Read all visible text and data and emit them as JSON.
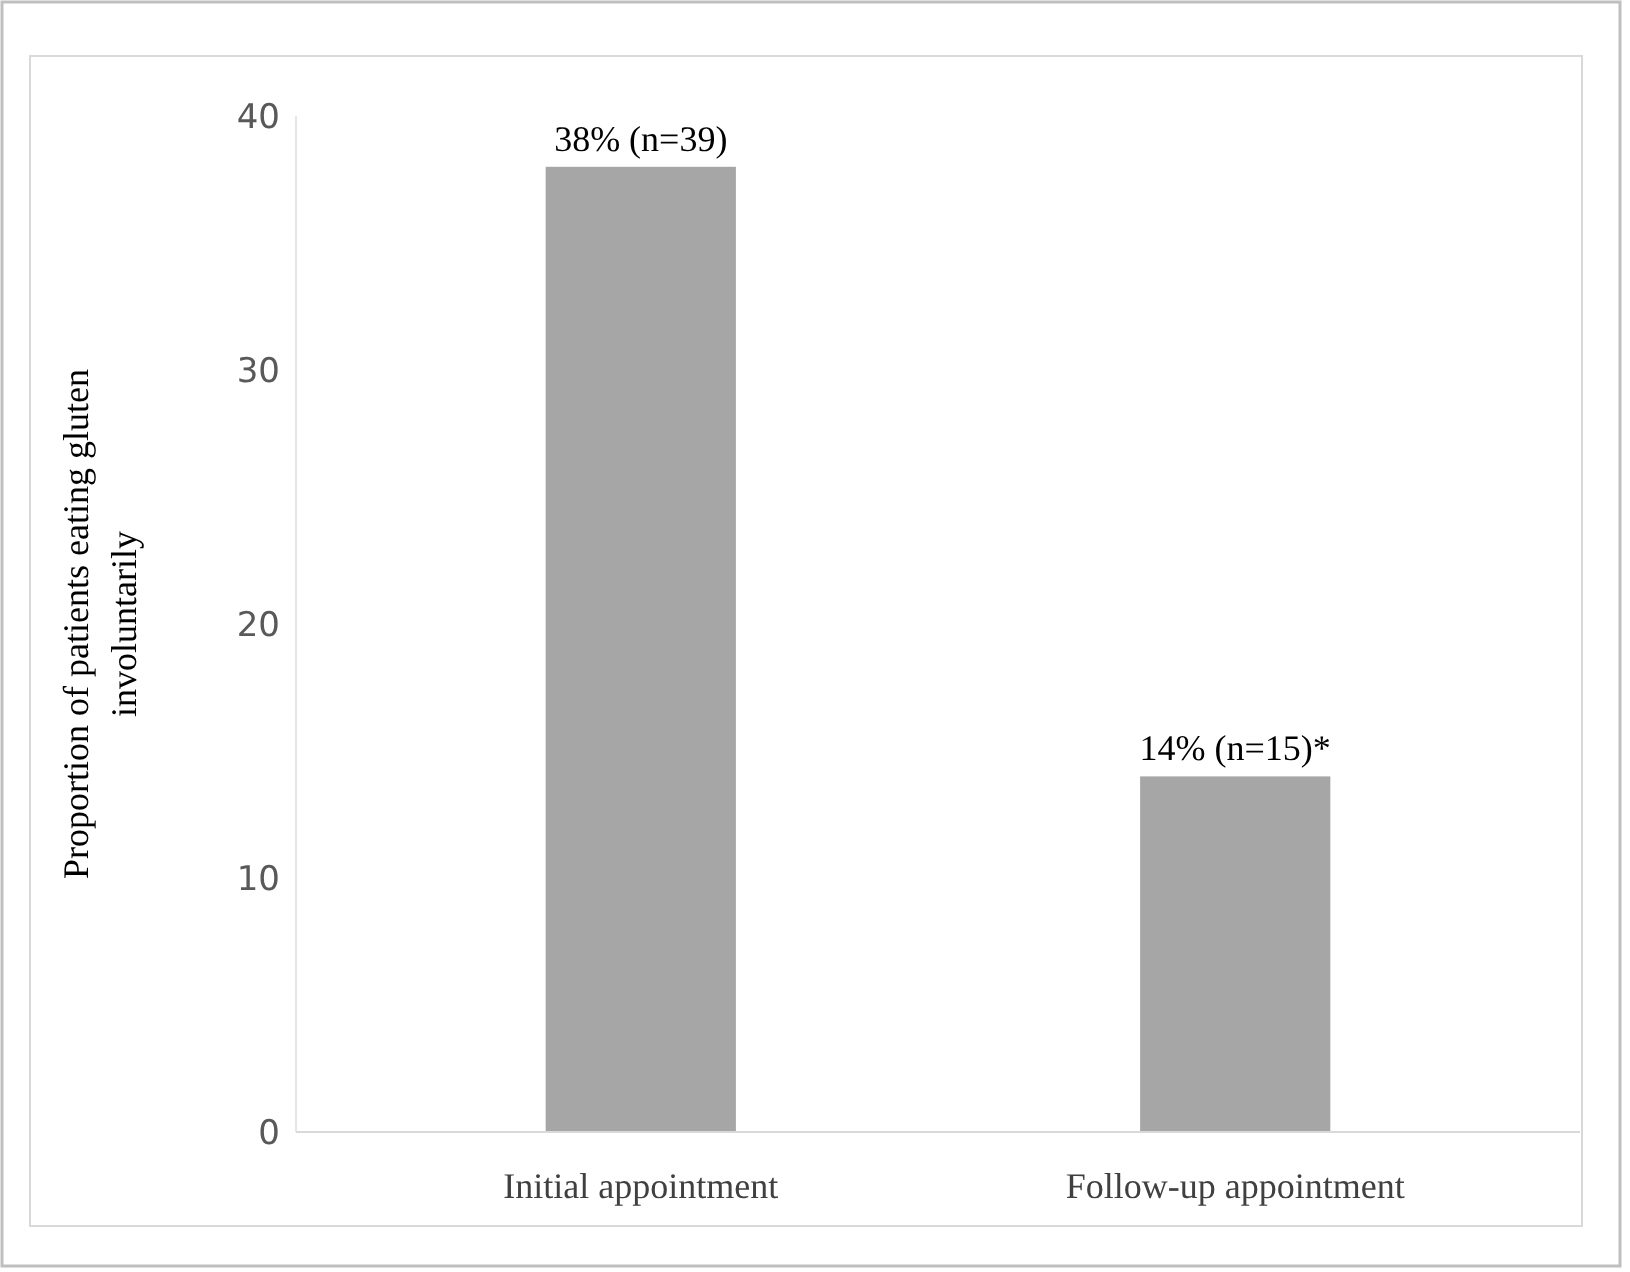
{
  "chart_data": {
    "type": "bar",
    "ylabel": "Proportion of patients eating gluten involuntarily",
    "categories": [
      "Initial appointment",
      "Follow-up appointment"
    ],
    "values": [
      38,
      14
    ],
    "color": "#a6a6a6",
    "value_labels": [
      "38% (n=39)",
      "14% (n=15)*"
    ],
    "ylim": [
      0,
      40
    ],
    "yticks": [
      0,
      10,
      20,
      30,
      40
    ],
    "grid": false
  }
}
